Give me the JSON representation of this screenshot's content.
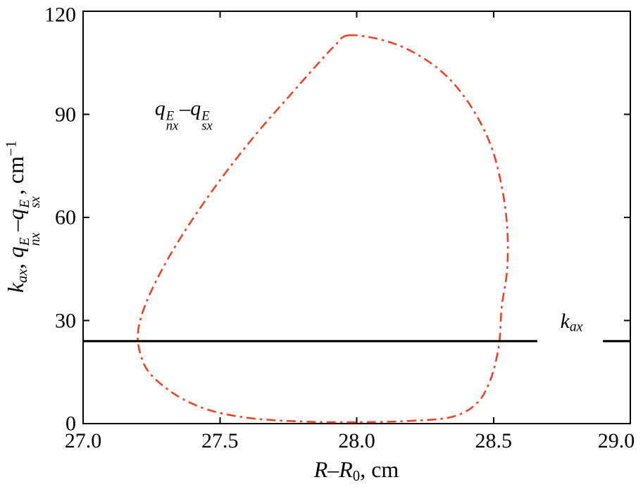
{
  "figure": {
    "background": "#ffffff",
    "axis_color": "#000000",
    "accent_color": "#e8442a"
  },
  "chart_data": {
    "type": "line",
    "title": "",
    "grid": false,
    "legend_position": "none",
    "xlim": [
      27.0,
      29.0
    ],
    "ylim": [
      0,
      120
    ],
    "xticks": [
      27.0,
      27.5,
      28.0,
      28.5,
      29.0
    ],
    "xtick_labels": [
      "27.0",
      "27.5",
      "28.0",
      "28.5",
      "29.0"
    ],
    "yticks": [
      0,
      30,
      60,
      90,
      120
    ],
    "ytick_labels": [
      "0",
      "30",
      "60",
      "90",
      "120"
    ],
    "xlabel_text": "R–R0, cm",
    "ylabel_text": "kax, qEnx–qEsx, cm−1",
    "xlabel_tokens": [
      {
        "t": "R",
        "s": "i"
      },
      {
        "t": "–",
        "s": "n"
      },
      {
        "t": "R",
        "s": "i"
      },
      {
        "t": "0",
        "s": "sub"
      },
      {
        "t": ", cm",
        "s": "n"
      }
    ],
    "ylabel_tokens": [
      {
        "t": "k",
        "s": "i"
      },
      {
        "t": "ax",
        "s": "isub"
      },
      {
        "t": ", ",
        "s": "n"
      },
      {
        "t": "q",
        "s": "i"
      },
      {
        "stack": {
          "sup": "E",
          "sub": "nx"
        }
      },
      {
        "t": "–",
        "s": "n"
      },
      {
        "t": "q",
        "s": "i"
      },
      {
        "stack": {
          "sup": "E",
          "sub": "sx"
        }
      },
      {
        "t": ", cm",
        "s": "n"
      },
      {
        "t": "−1",
        "s": "sup"
      }
    ],
    "series": [
      {
        "id": "qdiff-loop",
        "name": "qEnx - qEsx (closed dash-dot loop)",
        "color": "#e8442a",
        "line_style": "dash-dot",
        "dash": "13 6 3.5 6",
        "width": 2.6,
        "closed": true,
        "points": [
          [
            27.97,
            113.0
          ],
          [
            28.1,
            111.5
          ],
          [
            28.22,
            107.5
          ],
          [
            28.33,
            101.0
          ],
          [
            28.42,
            92.0
          ],
          [
            28.49,
            81.0
          ],
          [
            28.53,
            69.0
          ],
          [
            28.55,
            57.0
          ],
          [
            28.55,
            45.0
          ],
          [
            28.53,
            34.0
          ],
          [
            28.52,
            23.0
          ],
          [
            28.49,
            13.0
          ],
          [
            28.44,
            6.0
          ],
          [
            28.35,
            2.0
          ],
          [
            28.2,
            0.8
          ],
          [
            28.0,
            0.4
          ],
          [
            27.8,
            0.6
          ],
          [
            27.62,
            1.5
          ],
          [
            27.48,
            3.5
          ],
          [
            27.38,
            6.5
          ],
          [
            27.3,
            10.5
          ],
          [
            27.24,
            15.0
          ],
          [
            27.21,
            20.0
          ],
          [
            27.2,
            26.0
          ],
          [
            27.22,
            33.0
          ],
          [
            27.27,
            42.0
          ],
          [
            27.34,
            52.0
          ],
          [
            27.43,
            63.0
          ],
          [
            27.53,
            74.0
          ],
          [
            27.64,
            85.0
          ],
          [
            27.75,
            95.0
          ],
          [
            27.85,
            104.0
          ],
          [
            27.92,
            110.0
          ]
        ]
      },
      {
        "id": "kax-line",
        "name": "kax (horizontal solid line)",
        "color": "#000000",
        "line_style": "solid",
        "width": 3.2,
        "value": 24,
        "segments": [
          [
            [
              27.0,
              24
            ],
            [
              28.66,
              24
            ]
          ],
          [
            [
              28.9,
              24
            ],
            [
              29.0,
              24
            ]
          ]
        ]
      }
    ],
    "annotations": [
      {
        "id": "curve-label",
        "x": 27.37,
        "y": 90,
        "text": "qEnx–qEsx",
        "tokens": [
          {
            "t": "q",
            "s": "i"
          },
          {
            "stack": {
              "sup": "E",
              "sub": "nx"
            }
          },
          {
            "t": "–",
            "s": "n"
          },
          {
            "t": "q",
            "s": "i"
          },
          {
            "stack": {
              "sup": "E",
              "sub": "sx"
            }
          }
        ]
      },
      {
        "id": "kax-label",
        "x": 28.785,
        "y": 29.5,
        "text": "kax",
        "tokens": [
          {
            "t": "k",
            "s": "i"
          },
          {
            "t": "ax",
            "s": "isub"
          }
        ]
      }
    ]
  }
}
